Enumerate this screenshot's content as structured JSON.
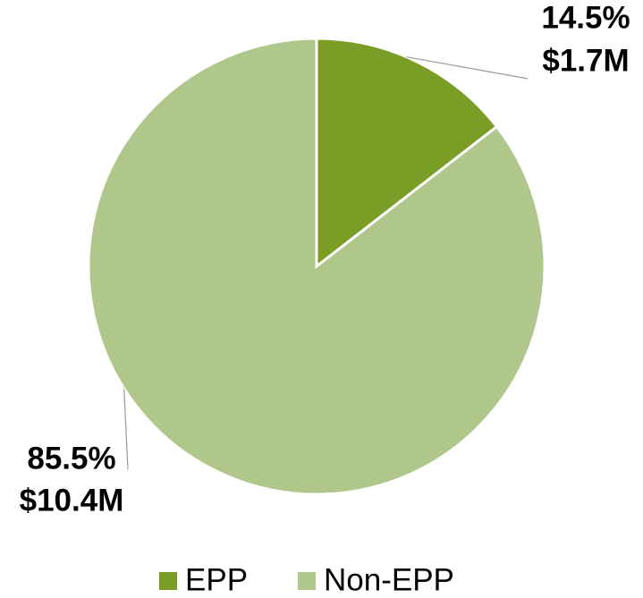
{
  "chart_data": {
    "type": "pie",
    "categories": [
      "EPP",
      "Non-EPP"
    ],
    "values": [
      14.5,
      85.5
    ],
    "value_labels": [
      "14.5%",
      "85.5%"
    ],
    "amount_labels": [
      "$1.7M",
      "$10.4M"
    ],
    "colors": [
      "#7a9e25",
      "#afc78b"
    ],
    "legend": "bottom"
  }
}
